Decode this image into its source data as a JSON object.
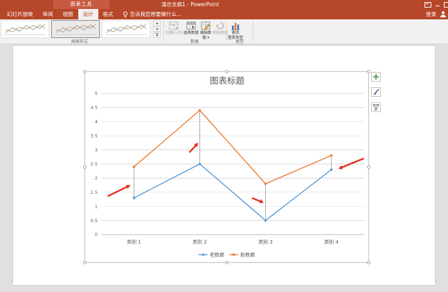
{
  "window": {
    "contextual_tools_label": "图表工具",
    "title": "演示文稿1 - PowerPoint",
    "sign_in_label": "登录",
    "window_controls": [
      "ribbon-display-options",
      "minimize",
      "maximize"
    ]
  },
  "tabs": {
    "items": [
      {
        "label": "幻灯片放映",
        "selected": false
      },
      {
        "label": "审阅",
        "selected": false
      },
      {
        "label": "视图",
        "selected": false
      },
      {
        "label": "设计",
        "selected": true
      },
      {
        "label": "格式",
        "selected": false
      }
    ],
    "tell_me": "告诉我您想要做什么..."
  },
  "ribbon": {
    "chart_styles_group": {
      "label": "图表样式",
      "selected_style_index": 1,
      "visible_styles": 3
    },
    "data_group": {
      "label": "数据",
      "buttons": [
        {
          "label": "切换行/列",
          "icon": "switch-row-column-icon",
          "enabled": false,
          "wrap_after": 0,
          "dropdown": false
        },
        {
          "label": "选择数据",
          "icon": "select-data-icon",
          "enabled": true,
          "wrap_after": 0,
          "dropdown": false
        },
        {
          "label": "编辑数据",
          "icon": "edit-data-icon",
          "enabled": true,
          "wrap_after": 3,
          "dropdown": true
        },
        {
          "label": "刷新数据",
          "icon": "refresh-data-icon",
          "enabled": false,
          "wrap_after": 0,
          "dropdown": false
        }
      ]
    },
    "type_group": {
      "label": "类型",
      "buttons": [
        {
          "label": "更改图表类型",
          "icon": "change-chart-type-icon",
          "enabled": true,
          "wrap_after": 2,
          "dropdown": false
        }
      ]
    }
  },
  "chart_buttons": [
    {
      "name": "chart-elements-button",
      "icon": "plus-icon"
    },
    {
      "name": "chart-styles-button",
      "icon": "brush-icon"
    },
    {
      "name": "chart-filters-button",
      "icon": "funnel-icon"
    }
  ],
  "chart_data": {
    "type": "line",
    "title": "图表标题",
    "categories": [
      "类别 1",
      "类别 2",
      "类别 3",
      "类别 4"
    ],
    "series": [
      {
        "name": "老数据",
        "color": "#5b9bd5",
        "values": [
          1.3,
          2.5,
          0.5,
          2.3
        ]
      },
      {
        "name": "新数据",
        "color": "#ed7d31",
        "values": [
          2.4,
          4.4,
          1.8,
          2.8
        ]
      }
    ],
    "ylim": [
      0,
      5
    ],
    "ytick_step": 0.5,
    "grid": true,
    "legend_position": "bottom",
    "high_low_lines": true,
    "annotations": {
      "arrow_color": "#e0301e",
      "arrows": [
        {
          "category_index": 0,
          "direction": "up-right"
        },
        {
          "category_index": 1,
          "direction": "up-right"
        },
        {
          "category_index": 2,
          "direction": "down-right"
        },
        {
          "category_index": 3,
          "direction": "down-left"
        }
      ]
    }
  }
}
